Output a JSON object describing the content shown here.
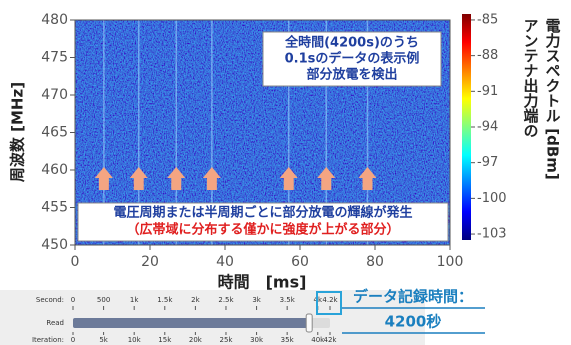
{
  "chart_data": {
    "type": "spectrogram",
    "xlabel": "時間　[ms]",
    "ylabel": "周波数 [MHz]",
    "xlim": [
      0,
      100
    ],
    "xticks": [
      0,
      20,
      40,
      60,
      80,
      100
    ],
    "ylim": [
      450,
      480
    ],
    "yticks": [
      450,
      455,
      460,
      465,
      470,
      475,
      480
    ],
    "colorbar": {
      "label": [
        "アンテナ出力端の",
        "電力スペクトル [dBm]"
      ],
      "clim": [
        -103.5,
        -84.5
      ],
      "ticks": [
        -85,
        -88,
        -91,
        -94,
        -97,
        -100,
        -103
      ],
      "colormap": [
        "#00007f",
        "#0000ff",
        "#0080ff",
        "#00ffff",
        "#80ff80",
        "#ffff00",
        "#ff8000",
        "#ff0000",
        "#7f0000"
      ]
    },
    "discharge_times": [
      7.7,
      17,
      27,
      36.5,
      57,
      67,
      78
    ],
    "arrow_color": "#f4a582",
    "annotations": [
      {
        "lines": [
          "全時間(4200s)のうち",
          "0.1sのデータの表示例",
          "部分放電を検出"
        ],
        "color": "#1f3f9f"
      },
      {
        "lines": [
          "電圧周期または半周期ごとに部分放電の輝線が発生",
          "（広帯域に分布する僅かに強度が上がる部分）"
        ],
        "colors": [
          "#1f3f9f",
          "#e02020"
        ]
      }
    ]
  },
  "ui": {
    "slider": {
      "second_label": "Second:",
      "read_label": "Read",
      "iteration_label": "Iteration:",
      "range": [
        0,
        4200
      ],
      "second_ticks": [
        0,
        500,
        {
          "value": 1000,
          "label": "1k"
        },
        {
          "value": 1500,
          "label": "1.5k"
        },
        {
          "value": 2000,
          "label": "2k"
        },
        {
          "value": 2500,
          "label": "2.5k"
        },
        {
          "value": 3000,
          "label": "3k"
        },
        {
          "value": 3500,
          "label": "3.5k"
        },
        {
          "value": 4000,
          "label": "4k"
        },
        {
          "value": 4200,
          "label": "4.2k"
        }
      ],
      "iteration_ticks": [
        0,
        {
          "value": 5000,
          "label": "5k"
        },
        {
          "value": 10000,
          "label": "10k"
        },
        {
          "value": 15000,
          "label": "15k"
        },
        {
          "value": 20000,
          "label": "20k"
        },
        {
          "value": 25000,
          "label": "25k"
        },
        {
          "value": 30000,
          "label": "30k"
        },
        {
          "value": 35000,
          "label": "35k"
        },
        {
          "value": 40000,
          "label": "40k"
        },
        {
          "value": 42000,
          "label": "42k"
        }
      ],
      "read_position": 3860
    },
    "callout": {
      "lines": [
        "データ記録時間：",
        "4200秒"
      ],
      "color": "#1a7fbf"
    }
  }
}
